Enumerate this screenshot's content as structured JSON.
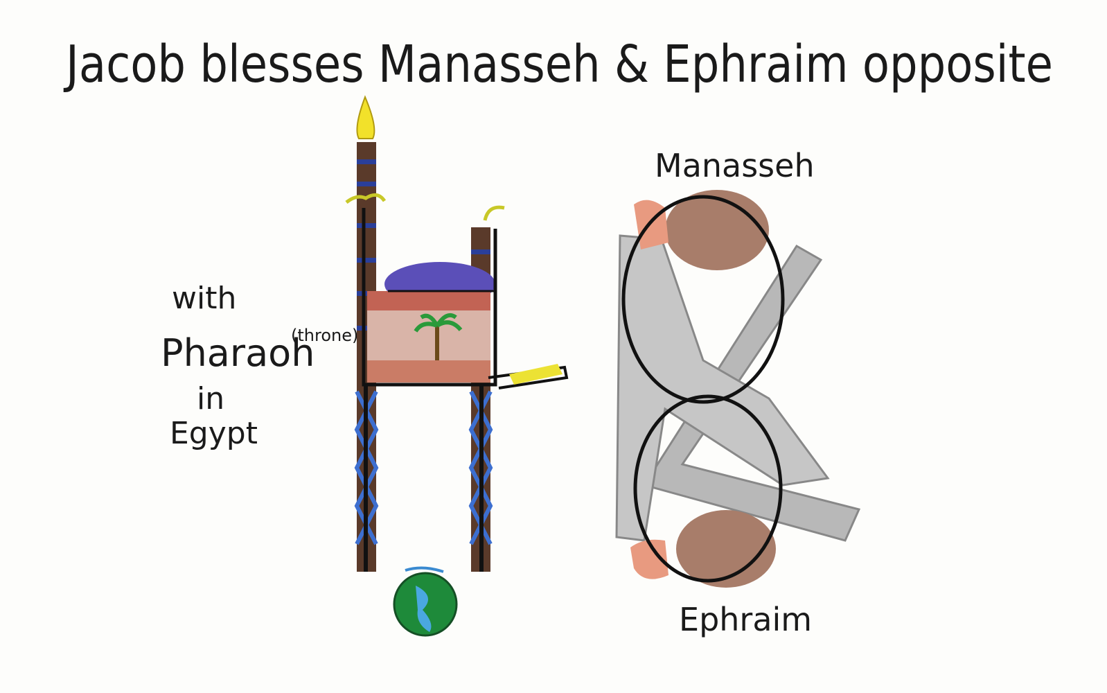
{
  "title": "Jacob blesses Manasseh & Ephraim opposite",
  "left_caption": {
    "line1": "with",
    "line2": "Pharaoh",
    "note": "(throne)",
    "line3": "in",
    "line4": "Egypt"
  },
  "figure_labels": {
    "top": "Manasseh",
    "bottom": "Ephraim"
  }
}
